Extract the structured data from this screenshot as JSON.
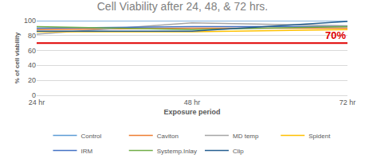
{
  "chart_data": {
    "type": "line",
    "title": "Cell Viability after 24, 48, & 72 hrs.",
    "x_label": "Exposure period",
    "y_label": "% of cell viability",
    "categories": [
      "24 hr",
      "48 hr",
      "72 hr"
    ],
    "series": [
      {
        "name": "Control",
        "color": "#5b9bd5",
        "values": [
          100,
          100,
          100
        ]
      },
      {
        "name": "Caviton",
        "color": "#ed7d31",
        "values": [
          88,
          90,
          90
        ]
      },
      {
        "name": "MD temp",
        "color": "#a5a5a5",
        "values": [
          82,
          97,
          93
        ]
      },
      {
        "name": "Spident",
        "color": "#ffc000",
        "values": [
          85,
          85,
          88
        ]
      },
      {
        "name": "IRM",
        "color": "#4472c4",
        "values": [
          90,
          92,
          92
        ]
      },
      {
        "name": "Systemp.Inlay",
        "color": "#70ad47",
        "values": [
          92,
          88,
          92
        ]
      },
      {
        "name": "Clip",
        "color": "#255e91",
        "values": [
          86,
          86,
          99
        ]
      }
    ],
    "annotations": [
      {
        "y": 70,
        "text": "70%",
        "color": "#e00000"
      }
    ],
    "ylim": [
      0,
      100
    ],
    "yticks": [
      0,
      20,
      40,
      60,
      80,
      100
    ],
    "grid": true,
    "legend": "bottom"
  }
}
